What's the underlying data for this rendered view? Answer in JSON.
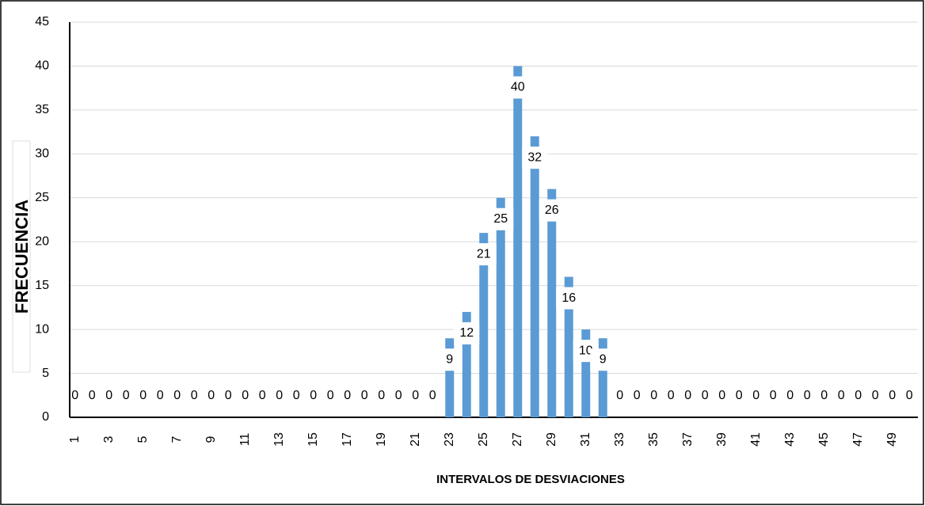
{
  "chart_data": {
    "type": "bar",
    "x_label": "INTERVALOS DE DESVIACIONES",
    "y_label": "FRECUENCIA",
    "categories": [
      "1",
      null,
      "3",
      null,
      "5",
      null,
      "7",
      null,
      "9",
      null,
      "11",
      null,
      "13",
      null,
      "15",
      null,
      "17",
      null,
      "19",
      null,
      "21",
      null,
      "23",
      null,
      "25",
      null,
      "27",
      null,
      "29",
      null,
      "31",
      null,
      "33",
      null,
      "35",
      null,
      "37",
      null,
      "39",
      null,
      "41",
      null,
      "43",
      null,
      "45",
      null,
      "47",
      null,
      "49",
      null
    ],
    "values": [
      0,
      0,
      0,
      0,
      0,
      0,
      0,
      0,
      0,
      0,
      0,
      0,
      0,
      0,
      0,
      0,
      0,
      0,
      0,
      0,
      0,
      0,
      9,
      12,
      21,
      25,
      40,
      32,
      26,
      16,
      10,
      9,
      0,
      0,
      0,
      0,
      0,
      0,
      0,
      0,
      0,
      0,
      0,
      0,
      0,
      0,
      0,
      0,
      0,
      0
    ],
    "color": "#5b9bd5",
    "ylim": [
      0,
      45
    ],
    "yticks": [
      0,
      5,
      10,
      15,
      20,
      25,
      30,
      35,
      40,
      45
    ],
    "grid": true
  }
}
